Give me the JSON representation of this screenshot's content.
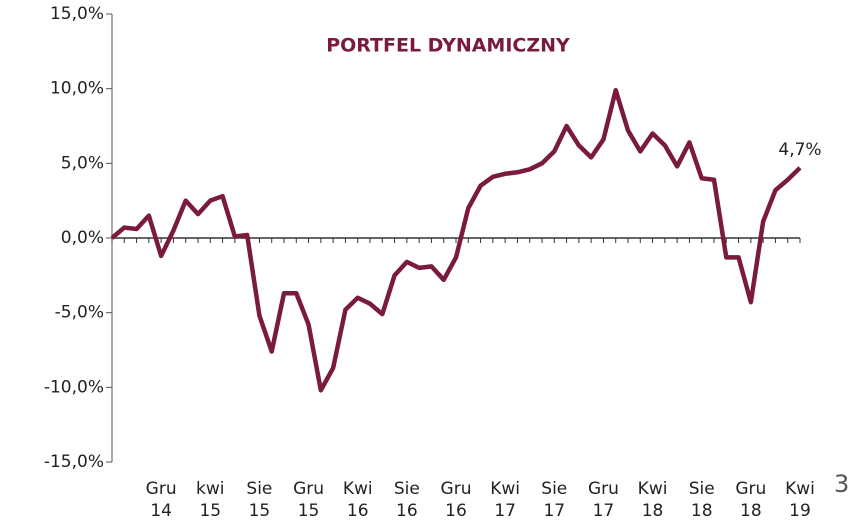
{
  "chart_data": {
    "type": "line",
    "title": "PORTFEL DYNAMICZNY",
    "page_number": "3",
    "categories": [
      null,
      null,
      null,
      null,
      "Gru 14",
      null,
      null,
      null,
      "kwi 15",
      null,
      null,
      null,
      "Sie 15",
      null,
      null,
      null,
      "Gru 15",
      null,
      null,
      null,
      "Kwi 16",
      null,
      null,
      null,
      "Sie 16",
      null,
      null,
      null,
      "Gru 16",
      null,
      null,
      null,
      "Kwi 17",
      null,
      null,
      null,
      "Sie 17",
      null,
      null,
      null,
      "Gru 17",
      null,
      null,
      null,
      "Kwi 18",
      null,
      null,
      null,
      "Sie 18",
      null,
      null,
      null,
      "Gru 18",
      null,
      null,
      null,
      "Kwi 19"
    ],
    "series": [
      {
        "name": "PORTFEL DYNAMICZNY",
        "color": "#7a1a3e",
        "values": [
          0,
          0.7,
          0.6,
          1.5,
          -1.2,
          0.5,
          2.5,
          1.6,
          2.5,
          2.8,
          0.1,
          0.2,
          -5.2,
          -7.6,
          -3.7,
          -3.7,
          -5.8,
          -10.2,
          -8.7,
          -4.8,
          -4.0,
          -4.4,
          -5.1,
          -2.5,
          -1.6,
          -2.0,
          -1.9,
          -2.8,
          -1.3,
          2.0,
          3.5,
          4.1,
          4.3,
          4.4,
          4.6,
          5.0,
          5.8,
          7.5,
          6.2,
          5.4,
          6.6,
          9.9,
          7.2,
          5.8,
          7.0,
          6.2,
          4.8,
          6.4,
          4.0,
          3.9,
          -1.3,
          -1.3,
          -4.3,
          1.1,
          3.2,
          3.9,
          4.7
        ],
        "value_labels": [
          null,
          null,
          null,
          null,
          null,
          null,
          null,
          null,
          null,
          null,
          null,
          null,
          null,
          null,
          null,
          null,
          null,
          null,
          null,
          null,
          null,
          null,
          null,
          null,
          null,
          null,
          null,
          null,
          null,
          null,
          null,
          null,
          null,
          null,
          null,
          null,
          null,
          null,
          null,
          null,
          null,
          null,
          null,
          null,
          null,
          null,
          null,
          null,
          null,
          null,
          null,
          null,
          null,
          null,
          null,
          null,
          "4,7%"
        ]
      }
    ],
    "ylim": [
      -15,
      15
    ],
    "yticks": [
      {
        "value": -15,
        "label": "-15,0%"
      },
      {
        "value": -10,
        "label": "-10,0%"
      },
      {
        "value": -5,
        "label": "-5,0%"
      },
      {
        "value": 0,
        "label": "0,0%"
      },
      {
        "value": 5,
        "label": "5,0%"
      },
      {
        "value": 10,
        "label": "10,0%"
      },
      {
        "value": 15,
        "label": "15,0%"
      }
    ]
  }
}
